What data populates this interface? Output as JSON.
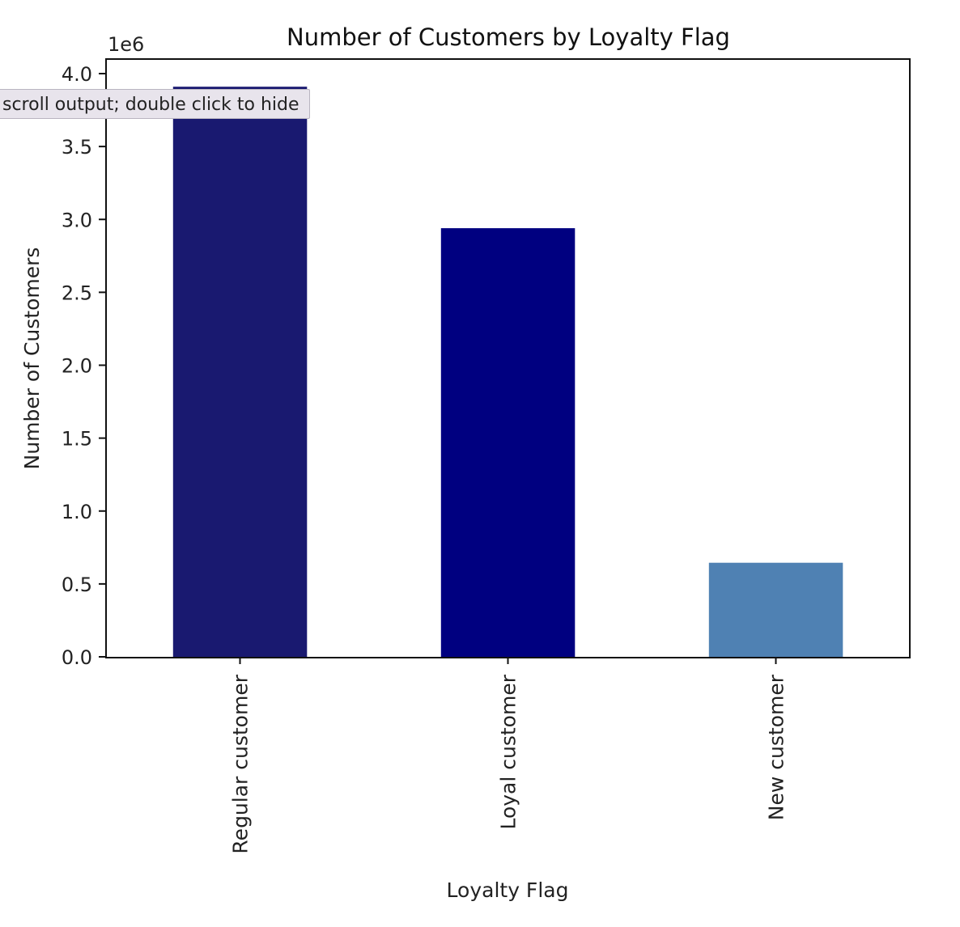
{
  "tooltip": {
    "text": "scroll output; double click to hide"
  },
  "chart_data": {
    "type": "bar",
    "title": "Number of Customers by Loyalty Flag",
    "xlabel": "Loyalty Flag",
    "ylabel": "Number of Customers",
    "y_offset_label": "1e6",
    "y_scale": 1000000,
    "categories": [
      "Regular customer",
      "Loyal customer",
      "New customer"
    ],
    "values": [
      3910000,
      2940000,
      645000
    ],
    "colors": [
      "#191970",
      "#000080",
      "#4f81b3"
    ],
    "ylim": [
      0,
      4100000
    ],
    "yticks": [
      0,
      500000,
      1000000,
      1500000,
      2000000,
      2500000,
      3000000,
      3500000,
      4000000
    ],
    "ytick_labels": [
      "0.0",
      "0.5",
      "1.0",
      "1.5",
      "2.0",
      "2.5",
      "3.0",
      "3.5",
      "4.0"
    ],
    "grid": false,
    "legend": "none"
  }
}
